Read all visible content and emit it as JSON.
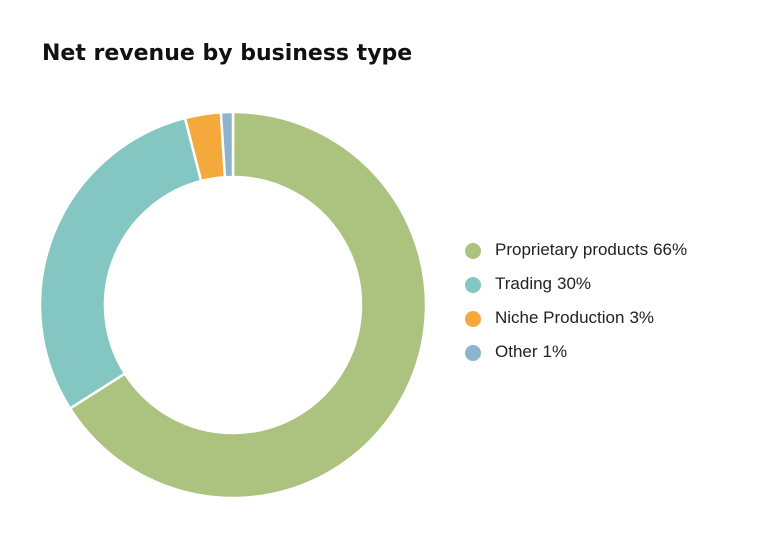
{
  "chart_data": {
    "type": "donut",
    "title": "Net revenue by business type",
    "categories": [
      "Proprietary products",
      "Trading",
      "Niche Production",
      "Other"
    ],
    "values": [
      66,
      30,
      3,
      1
    ],
    "value_labels": [
      "66%",
      "30%",
      "3%",
      "1%"
    ],
    "colors": [
      "#abc37f",
      "#84c6c2",
      "#f5a83b",
      "#8db4cc"
    ],
    "legend": "right"
  }
}
